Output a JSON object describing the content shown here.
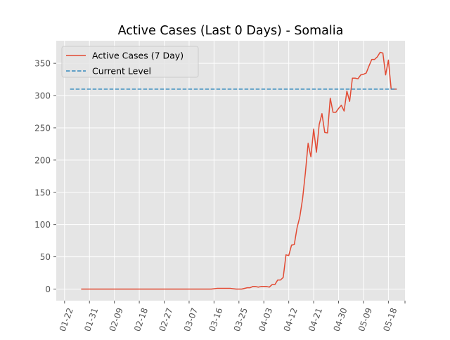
{
  "chart_data": {
    "type": "line",
    "title": "Active Cases (Last 0 Days) - Somalia",
    "xlabel": "",
    "ylabel": "",
    "x_ticks": [
      "01-22",
      "01-31",
      "02-09",
      "02-18",
      "02-27",
      "03-07",
      "03-16",
      "03-25",
      "04-03",
      "04-12",
      "04-21",
      "04-30",
      "05-09",
      "05-18"
    ],
    "y_ticks": [
      0,
      50,
      100,
      150,
      200,
      250,
      300,
      350
    ],
    "xlim": [
      "01-19",
      "05-24"
    ],
    "ylim": [
      -18,
      385
    ],
    "grid": true,
    "legend_position": "top-left",
    "series": [
      {
        "name": "Active Cases (7 Day)",
        "color": "#e24a33",
        "x": [
          "01-28",
          "02-06",
          "02-15",
          "02-24",
          "03-04",
          "03-13",
          "03-15",
          "03-17",
          "03-20",
          "03-22",
          "03-24",
          "03-26",
          "03-28",
          "03-29",
          "03-30",
          "03-31",
          "04-01",
          "04-02",
          "04-03",
          "04-04",
          "04-05",
          "04-06",
          "04-07",
          "04-08",
          "04-09",
          "04-10",
          "04-11",
          "04-12",
          "04-13",
          "04-14",
          "04-15",
          "04-16",
          "04-17",
          "04-18",
          "04-19",
          "04-20",
          "04-21",
          "04-22",
          "04-23",
          "04-24",
          "04-25",
          "04-26",
          "04-27",
          "04-28",
          "04-29",
          "04-30",
          "05-01",
          "05-02",
          "05-03",
          "05-04",
          "05-05",
          "05-06",
          "05-07",
          "05-08",
          "05-09",
          "05-10",
          "05-11",
          "05-12",
          "05-13",
          "05-14",
          "05-15",
          "05-16",
          "05-17",
          "05-18",
          "05-19",
          "05-20",
          "05-21"
        ],
        "values": [
          0,
          0,
          0,
          0,
          0,
          0,
          0,
          1,
          1,
          1,
          0,
          0,
          2,
          2,
          4,
          4,
          3,
          4,
          4,
          4,
          3,
          7,
          7,
          14,
          14,
          18,
          53,
          52,
          68,
          69,
          95,
          112,
          140,
          180,
          226,
          205,
          248,
          212,
          255,
          272,
          243,
          242,
          296,
          274,
          274,
          280,
          285,
          276,
          307,
          291,
          327,
          327,
          326,
          332,
          333,
          335,
          346,
          356,
          356,
          360,
          367,
          366,
          332,
          355,
          310,
          310,
          310
        ],
        "style": "solid"
      },
      {
        "name": "Current Level",
        "color": "#348abd",
        "x": [
          "01-24",
          "05-21"
        ],
        "values": [
          310,
          310
        ],
        "style": "dashed"
      }
    ]
  }
}
